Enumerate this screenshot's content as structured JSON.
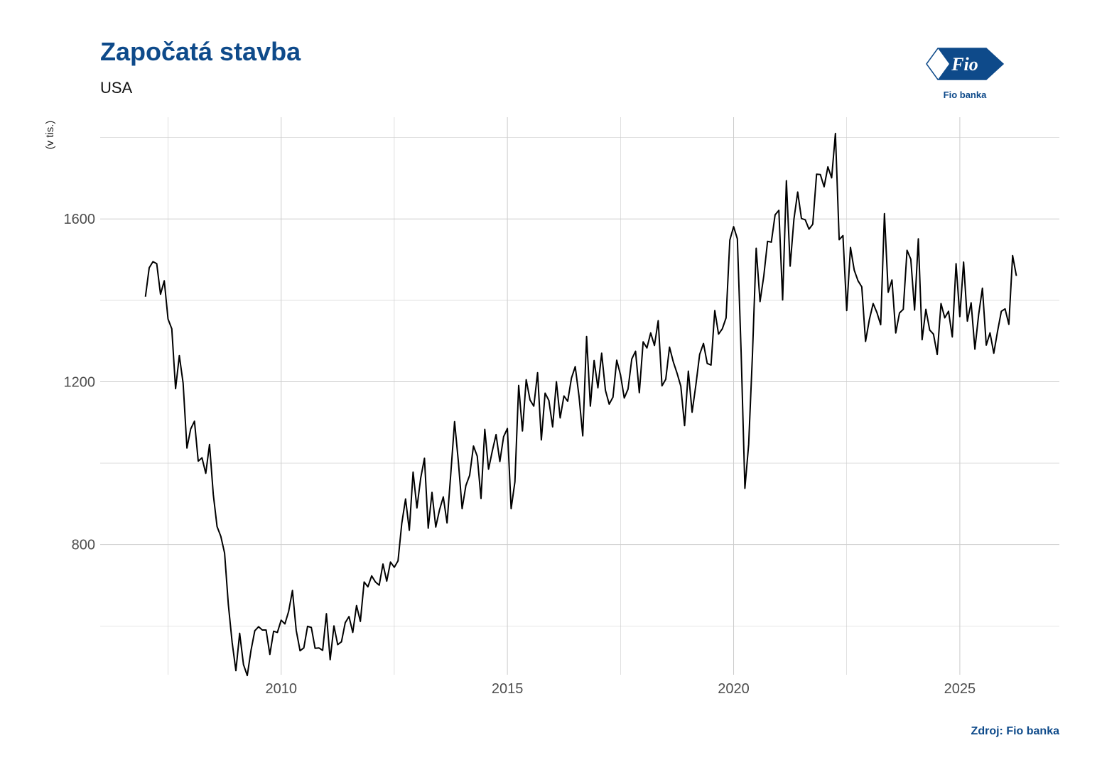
{
  "header": {
    "title": "Započatá stavba",
    "subtitle": "USA"
  },
  "footer": {
    "source": "Zdroj: Fio banka"
  },
  "logo": {
    "mark_text": "Fio",
    "caption": "Fio banka",
    "color": "#0e4a8a"
  },
  "colors": {
    "title": "#0e4a8a",
    "line": "#000000",
    "grid": "#cccccc"
  },
  "chart_data": {
    "type": "line",
    "title": "Započatá stavba",
    "subtitle": "USA",
    "xlabel": "",
    "ylabel": "(v tis.)",
    "xlim": [
      2006.0,
      2027.2
    ],
    "ylim": [
      480,
      1850
    ],
    "x_ticks": [
      2010,
      2015,
      2020,
      2025
    ],
    "y_ticks": [
      800,
      1200,
      1600
    ],
    "grid": true,
    "legend": "none",
    "x_start": "2007-01",
    "frequency": "monthly",
    "series": [
      {
        "values": [
          1409,
          1480,
          1495,
          1490,
          1415,
          1448,
          1354,
          1330,
          1183,
          1264,
          1197,
          1037,
          1084,
          1103,
          1005,
          1013,
          975,
          1046,
          923,
          844,
          820,
          779,
          652,
          560,
          490,
          582,
          505,
          478,
          540,
          588,
          598,
          590,
          590,
          530,
          587,
          584,
          614,
          605,
          636,
          687,
          589,
          539,
          546,
          599,
          596,
          545,
          546,
          540,
          630,
          517,
          600,
          554,
          561,
          608,
          623,
          584,
          650,
          611,
          708,
          696,
          723,
          708,
          700,
          752,
          710,
          757,
          744,
          760,
          852,
          912,
          835,
          978,
          890,
          963,
          1012,
          840,
          928,
          843,
          885,
          917,
          853,
          975,
          1102,
          1004,
          888,
          945,
          970,
          1042,
          1017,
          913,
          1083,
          985,
          1030,
          1070,
          1004,
          1065,
          1085,
          888,
          954,
          1191,
          1079,
          1205,
          1155,
          1140,
          1222,
          1057,
          1172,
          1154,
          1089,
          1200,
          1111,
          1165,
          1152,
          1209,
          1237,
          1165,
          1067,
          1311,
          1140,
          1252,
          1185,
          1270,
          1179,
          1145,
          1162,
          1253,
          1217,
          1160,
          1182,
          1256,
          1275,
          1173,
          1298,
          1283,
          1320,
          1289,
          1350,
          1190,
          1206,
          1285,
          1249,
          1221,
          1189,
          1092,
          1226,
          1125,
          1192,
          1267,
          1294,
          1245,
          1241,
          1375,
          1317,
          1330,
          1357,
          1548,
          1581,
          1551,
          1272,
          938,
          1046,
          1265,
          1528,
          1397,
          1460,
          1545,
          1543,
          1610,
          1621,
          1401,
          1694,
          1484,
          1599,
          1666,
          1601,
          1598,
          1575,
          1587,
          1710,
          1709,
          1679,
          1728,
          1701,
          1810,
          1549,
          1559,
          1375,
          1530,
          1474,
          1448,
          1433,
          1299,
          1352,
          1392,
          1370,
          1340,
          1613,
          1420,
          1450,
          1320,
          1369,
          1378,
          1523,
          1501,
          1376,
          1551,
          1303,
          1378,
          1327,
          1317,
          1267,
          1392,
          1357,
          1373,
          1310,
          1490,
          1360,
          1494,
          1349,
          1394,
          1280,
          1365,
          1430,
          1290,
          1320,
          1270,
          1324,
          1373,
          1379,
          1341,
          1510,
          1460
        ]
      }
    ]
  }
}
